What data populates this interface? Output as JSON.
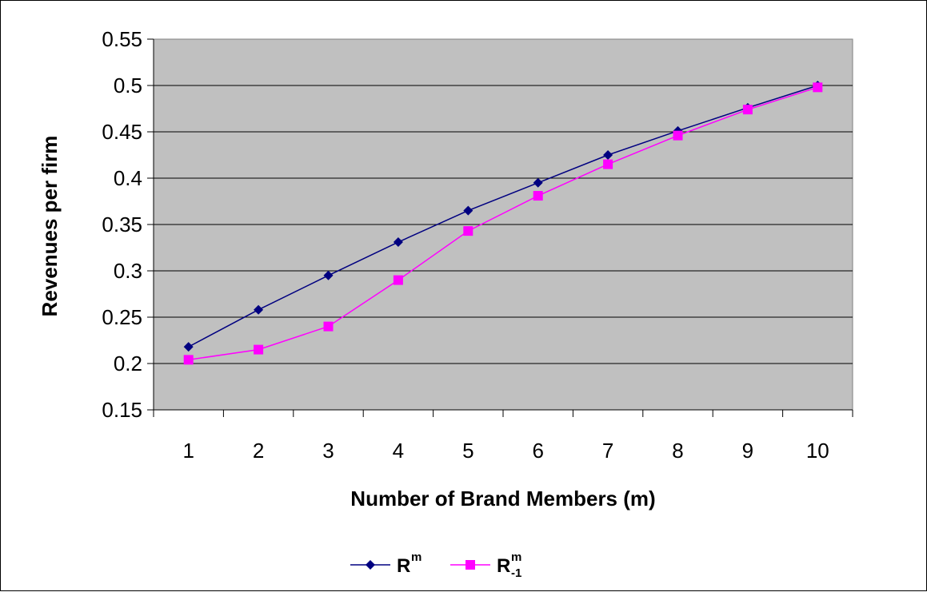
{
  "chart_data": {
    "type": "line",
    "xlabel": "Number of Brand Members (m)",
    "ylabel": "Revenues per firm",
    "categories": [
      "1",
      "2",
      "3",
      "4",
      "5",
      "6",
      "7",
      "8",
      "9",
      "10"
    ],
    "ylim": [
      0.15,
      0.55
    ],
    "yticks": [
      "0.15",
      "0.2",
      "0.25",
      "0.3",
      "0.35",
      "0.4",
      "0.45",
      "0.5",
      "0.55"
    ],
    "grid": true,
    "legend_position": "bottom",
    "series": [
      {
        "name": "R^m",
        "legend_base": "R",
        "legend_sup": "m",
        "legend_sub": "",
        "color": "#000080",
        "marker": "diamond",
        "values": [
          0.218,
          0.258,
          0.295,
          0.331,
          0.365,
          0.395,
          0.425,
          0.451,
          0.476,
          0.5
        ]
      },
      {
        "name": "R^m_-1",
        "legend_base": "R",
        "legend_sup": "m",
        "legend_sub": "-1",
        "color": "#ff00ff",
        "marker": "square",
        "values": [
          0.204,
          0.215,
          0.24,
          0.29,
          0.343,
          0.381,
          0.415,
          0.446,
          0.474,
          0.498
        ]
      }
    ],
    "colors": {
      "plot_background": "#c0c0c0",
      "gridline": "#000000"
    }
  }
}
